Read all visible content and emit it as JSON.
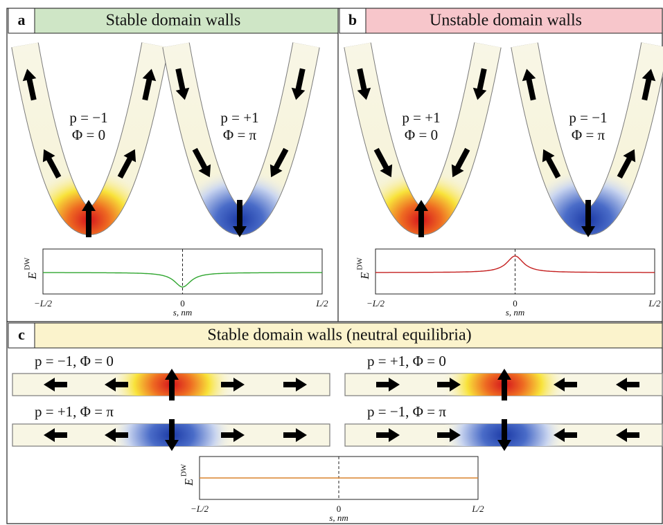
{
  "panels": [
    {
      "letter": "a",
      "title": "Stable domain walls",
      "walls": [
        {
          "p": "p = −1",
          "phi": "Φ = 0"
        },
        {
          "p": "p = +1",
          "phi": "Φ = π"
        }
      ],
      "plot": {
        "ylabel": "E",
        "ylabel_sup": "DW",
        "xticks": [
          "−L/2",
          "0",
          "L/2"
        ],
        "xlabel": "s, nm"
      }
    },
    {
      "letter": "b",
      "title": "Unstable domain walls",
      "walls": [
        {
          "p": "p = +1",
          "phi": "Φ = 0"
        },
        {
          "p": "p = −1",
          "phi": "Φ = π"
        }
      ],
      "plot": {
        "ylabel": "E",
        "ylabel_sup": "DW",
        "xticks": [
          "−L/2",
          "0",
          "L/2"
        ],
        "xlabel": "s, nm"
      }
    }
  ],
  "panel_c": {
    "letter": "c",
    "title": "Stable domain walls (neutral equilibria)",
    "strips": [
      "p = −1,  Φ = 0",
      "p = +1,  Φ = 0",
      "p = +1,  Φ = π",
      "p = −1,  Φ = π"
    ],
    "plot": {
      "ylabel": "E",
      "ylabel_sup": "DW",
      "xticks": [
        "−L/2",
        "0",
        "L/2"
      ],
      "xlabel": "s, nm"
    }
  }
}
